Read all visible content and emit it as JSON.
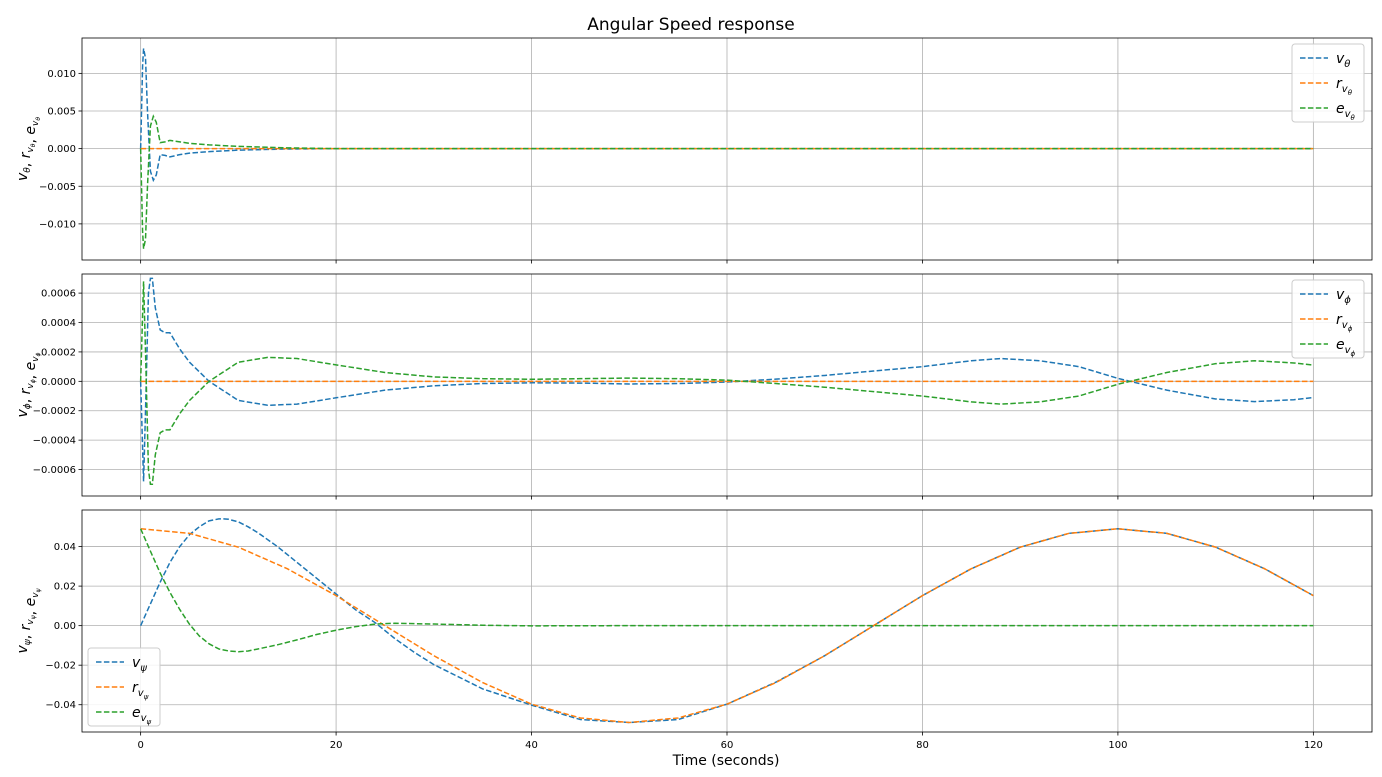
{
  "figure": {
    "title": "Angular Speed response",
    "xlabel": "Time (seconds)"
  },
  "colors": {
    "series_1": "#1f77b4",
    "series_2": "#ff7f0e",
    "series_3": "#2ca02c",
    "grid": "#b0b0b0",
    "axes": "#000000"
  },
  "chart_data": [
    {
      "type": "line",
      "ylabel": "vθ, rvθ, evθ",
      "xlim": [
        -6,
        126
      ],
      "ylim": [
        -0.0148,
        0.0147
      ],
      "xticks": [
        0,
        20,
        40,
        60,
        80,
        100,
        120
      ],
      "xtick_labels_visible": false,
      "yticks": [
        -0.01,
        -0.005,
        0,
        0.005,
        0.01
      ],
      "ytick_labels": [
        "−0.010",
        "−0.005",
        "0.000",
        "0.005",
        "0.010"
      ],
      "grid": true,
      "line_style": "dashed",
      "legend_position": "top-right",
      "legend": [
        {
          "base": "v",
          "sub": "θ",
          "subsub": ""
        },
        {
          "base": "r",
          "sub": "v",
          "subsub": "θ"
        },
        {
          "base": "e",
          "sub": "v",
          "subsub": "θ"
        }
      ],
      "series": [
        {
          "x": [
            0,
            0.2,
            0.3,
            0.5,
            0.7,
            1,
            1.3,
            1.6,
            2,
            2.5,
            3,
            4,
            5,
            7,
            10,
            15,
            20,
            30,
            40,
            60,
            80,
            100,
            120
          ],
          "y": [
            0,
            0.011,
            0.0133,
            0.012,
            0.005,
            -0.003,
            -0.0042,
            -0.0035,
            -0.0008,
            -0.0009,
            -0.0011,
            -0.0008,
            -0.0006,
            -0.0004,
            -0.0002,
            -5e-05,
            0,
            0,
            0,
            0,
            0,
            0,
            0
          ]
        },
        {
          "x": [
            0,
            120
          ],
          "y": [
            0,
            0
          ]
        },
        {
          "x": [
            0,
            0.2,
            0.3,
            0.5,
            0.7,
            1,
            1.3,
            1.6,
            2,
            2.5,
            3,
            4,
            5,
            7,
            10,
            15,
            20,
            30,
            40,
            60,
            80,
            100,
            120
          ],
          "y": [
            0,
            -0.011,
            -0.0133,
            -0.012,
            -0.005,
            0.003,
            0.0043,
            0.0035,
            0.0008,
            0.0009,
            0.0011,
            0.0009,
            0.0007,
            0.0005,
            0.0003,
            0.0001,
            0,
            0,
            0,
            0,
            0,
            0,
            0
          ]
        }
      ]
    },
    {
      "type": "line",
      "ylabel": "vϕ, rvϕ, evϕ",
      "xlim": [
        -6,
        126
      ],
      "ylim": [
        -0.00078,
        0.00073
      ],
      "xticks": [
        0,
        20,
        40,
        60,
        80,
        100,
        120
      ],
      "xtick_labels_visible": false,
      "yticks": [
        -0.0006,
        -0.0004,
        -0.0002,
        0,
        0.0002,
        0.0004,
        0.0006
      ],
      "ytick_labels": [
        "−0.0006",
        "−0.0004",
        "−0.0002",
        "0.0000",
        "0.0002",
        "0.0004",
        "0.0006"
      ],
      "grid": true,
      "line_style": "dashed",
      "legend_position": "top-right",
      "legend": [
        {
          "base": "v",
          "sub": "ϕ",
          "subsub": ""
        },
        {
          "base": "r",
          "sub": "v",
          "subsub": "ϕ"
        },
        {
          "base": "e",
          "sub": "v",
          "subsub": "ϕ"
        }
      ],
      "series": [
        {
          "x": [
            0,
            0.3,
            0.5,
            0.8,
            1,
            1.2,
            1.5,
            2,
            2.5,
            3,
            4,
            5,
            7,
            10,
            13,
            16,
            20,
            25,
            30,
            35,
            40,
            45,
            50,
            55,
            60,
            65,
            70,
            75,
            80,
            85,
            88,
            92,
            96,
            100,
            105,
            110,
            114,
            118,
            120
          ],
          "y": [
            0,
            -0.00068,
            -0.0002,
            0.0006,
            0.0007,
            0.0007,
            0.0005,
            0.00035,
            0.00033,
            0.00033,
            0.00022,
            0.00013,
            0.0,
            -0.00013,
            -0.000163,
            -0.000155,
            -0.000112,
            -6e-05,
            -3e-05,
            -1.5e-05,
            -1e-05,
            -1.2e-05,
            -1.8e-05,
            -1.5e-05,
            -5e-06,
            1.5e-05,
            4e-05,
            7e-05,
            0.0001,
            0.00014,
            0.000155,
            0.00014,
            0.0001,
            2e-05,
            -6e-05,
            -0.00012,
            -0.000138,
            -0.000125,
            -0.00011
          ]
        },
        {
          "x": [
            0,
            120
          ],
          "y": [
            0,
            0
          ]
        },
        {
          "x": [
            0,
            0.3,
            0.5,
            0.8,
            1,
            1.2,
            1.5,
            2,
            2.5,
            3,
            4,
            5,
            7,
            10,
            13,
            16,
            20,
            25,
            30,
            35,
            40,
            45,
            50,
            55,
            60,
            65,
            70,
            75,
            80,
            85,
            88,
            92,
            96,
            100,
            105,
            110,
            114,
            118,
            120
          ],
          "y": [
            0,
            0.00068,
            0.0002,
            -0.0006,
            -0.0007,
            -0.0007,
            -0.0005,
            -0.00035,
            -0.00033,
            -0.00033,
            -0.00022,
            -0.00013,
            0.0,
            0.00013,
            0.000163,
            0.000155,
            0.000112,
            6e-05,
            3e-05,
            1.8e-05,
            1.4e-05,
            1.8e-05,
            2.2e-05,
            1.8e-05,
            8e-06,
            -1.5e-05,
            -4e-05,
            -7e-05,
            -0.0001,
            -0.00014,
            -0.000155,
            -0.00014,
            -0.0001,
            -2e-05,
            6e-05,
            0.00012,
            0.00014,
            0.000125,
            0.00011
          ]
        }
      ]
    },
    {
      "type": "line",
      "ylabel": "vψ, rvψ, evψ",
      "xlim": [
        -6,
        126
      ],
      "ylim": [
        -0.0538,
        0.0585
      ],
      "xticks": [
        0,
        20,
        40,
        60,
        80,
        100,
        120
      ],
      "xtick_labels_visible": true,
      "xtick_labels": [
        "0",
        "20",
        "40",
        "60",
        "80",
        "100",
        "120"
      ],
      "yticks": [
        -0.04,
        -0.02,
        0,
        0.02,
        0.04
      ],
      "ytick_labels": [
        "−0.04",
        "−0.02",
        "0.00",
        "0.02",
        "0.04"
      ],
      "grid": true,
      "line_style": "dashed",
      "legend_position": "bottom-left",
      "legend": [
        {
          "base": "v",
          "sub": "ψ",
          "subsub": ""
        },
        {
          "base": "r",
          "sub": "v",
          "subsub": "ψ"
        },
        {
          "base": "e",
          "sub": "v",
          "subsub": "ψ"
        }
      ],
      "series": [
        {
          "x": [
            0,
            1,
            2,
            3,
            4,
            5,
            6,
            7,
            8,
            8.5,
            9,
            10,
            11,
            12,
            14,
            16,
            18,
            20,
            22,
            24,
            26,
            28,
            30,
            35,
            40,
            45,
            50,
            55,
            60,
            65,
            70,
            75,
            80,
            85,
            90,
            95,
            100,
            105,
            110,
            115,
            120
          ],
          "y": [
            0,
            0.011,
            0.022,
            0.032,
            0.04,
            0.046,
            0.05,
            0.053,
            0.054,
            0.054,
            0.0538,
            0.0525,
            0.05,
            0.047,
            0.04,
            0.032,
            0.024,
            0.016,
            0.008,
            0.0015,
            -0.0065,
            -0.0135,
            -0.0197,
            -0.032,
            -0.0402,
            -0.0475,
            -0.049,
            -0.0475,
            -0.0397,
            -0.0286,
            -0.0152,
            0.0,
            0.0152,
            0.0288,
            0.0397,
            0.0467,
            0.049,
            0.0467,
            0.0397,
            0.0288,
            0.0152
          ]
        },
        {
          "x": [
            0,
            5,
            10,
            15,
            20,
            25,
            30,
            35,
            40,
            45,
            50,
            55,
            60,
            65,
            70,
            75,
            80,
            85,
            90,
            95,
            100,
            105,
            110,
            115,
            120
          ],
          "y": [
            0.049,
            0.0467,
            0.0397,
            0.0288,
            0.0152,
            0.0,
            -0.0152,
            -0.0288,
            -0.0397,
            -0.0467,
            -0.049,
            -0.0467,
            -0.0397,
            -0.0288,
            -0.0152,
            0.0,
            0.0152,
            0.0288,
            0.0397,
            0.0467,
            0.049,
            0.0467,
            0.0397,
            0.0288,
            0.0152
          ]
        },
        {
          "x": [
            0,
            1,
            2,
            3,
            4,
            5,
            6,
            7,
            8,
            9,
            10,
            11,
            12,
            14,
            16,
            18,
            20,
            22,
            24,
            26,
            28,
            30,
            35,
            40,
            50,
            60,
            80,
            100,
            120
          ],
          "y": [
            0.049,
            0.0377,
            0.0266,
            0.0168,
            0.0082,
            0.0007,
            -0.0052,
            -0.0092,
            -0.0118,
            -0.0128,
            -0.0132,
            -0.0128,
            -0.0118,
            -0.0097,
            -0.0072,
            -0.0045,
            -0.0023,
            -0.0005,
            0.0008,
            0.0012,
            0.001,
            0.0008,
            0.0002,
            -0.0001,
            0,
            0,
            0,
            0,
            0
          ]
        }
      ]
    }
  ]
}
